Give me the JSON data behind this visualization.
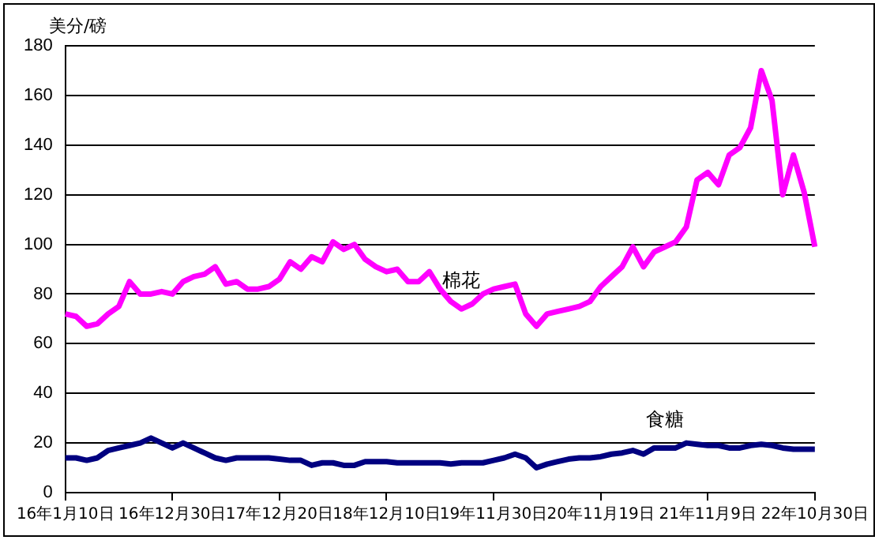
{
  "chart_data": {
    "type": "line",
    "ylabel": "美分/磅",
    "categories": [
      "16年1月10日",
      null,
      null,
      null,
      null,
      null,
      null,
      null,
      null,
      null,
      "16年12月30日",
      null,
      null,
      null,
      null,
      null,
      null,
      null,
      null,
      null,
      "17年12月20日",
      null,
      null,
      null,
      null,
      null,
      null,
      null,
      null,
      null,
      "18年12月10日",
      null,
      null,
      null,
      null,
      null,
      null,
      null,
      null,
      null,
      "19年11月30日",
      null,
      null,
      null,
      null,
      null,
      null,
      null,
      null,
      null,
      "20年11月19日",
      null,
      null,
      null,
      null,
      null,
      null,
      null,
      null,
      null,
      "21年11月9日",
      null,
      null,
      null,
      null,
      null,
      null,
      null,
      null,
      null,
      "22年10月30日"
    ],
    "series": [
      {
        "name": "棉花",
        "color": "#ff00ff",
        "values": [
          72,
          71,
          67,
          68,
          72,
          75,
          85,
          80,
          80,
          81,
          80,
          85,
          87,
          88,
          91,
          84,
          85,
          82,
          82,
          83,
          86,
          93,
          90,
          95,
          93,
          101,
          98,
          100,
          94,
          91,
          89,
          90,
          85,
          85,
          89,
          82,
          77,
          74,
          76,
          80,
          82,
          83,
          84,
          72,
          67,
          72,
          73,
          74,
          75,
          77,
          83,
          87,
          91,
          99,
          91,
          97,
          99,
          101,
          107,
          126,
          129,
          124,
          136,
          139,
          147,
          170,
          158,
          120,
          136,
          121,
          99
        ]
      },
      {
        "name": "食糖",
        "color": "#000080",
        "values": [
          14,
          14,
          13,
          14,
          17,
          18,
          19,
          20,
          22,
          20,
          18,
          20,
          18,
          16,
          14,
          13,
          14,
          14,
          14,
          14,
          13.5,
          13,
          13,
          11,
          12,
          12,
          11,
          11,
          12.5,
          12.5,
          12.5,
          12,
          12,
          12,
          12,
          12,
          11.5,
          12,
          12,
          12,
          13,
          14,
          15.5,
          14,
          10,
          11.5,
          12.5,
          13.5,
          14,
          14,
          14.5,
          15.5,
          16,
          17,
          15.5,
          18,
          18,
          18,
          20,
          19.5,
          19,
          19,
          18,
          18,
          19,
          19.5,
          19,
          18,
          17.5,
          17.5,
          17.5
        ]
      }
    ],
    "ylim": [
      0,
      180
    ],
    "yticks": [
      0,
      20,
      40,
      60,
      80,
      100,
      120,
      140,
      160,
      180
    ],
    "grid": "y",
    "legend": false
  }
}
